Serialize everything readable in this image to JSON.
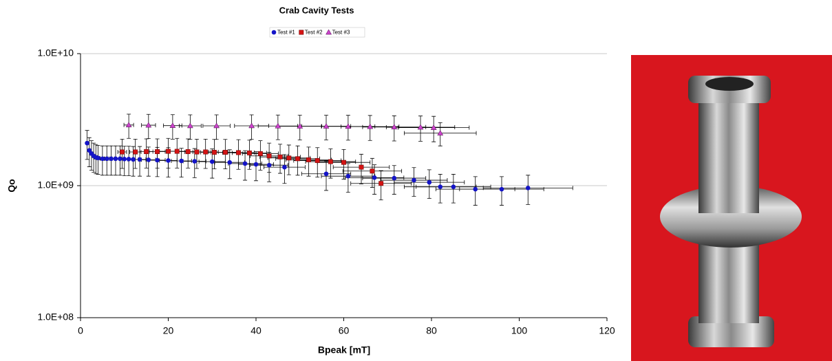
{
  "chart_data": {
    "type": "errorbar_scatter",
    "title": "Crab Cavity Tests",
    "x_label": "Bpeak [mT]",
    "y_label": "Qo",
    "xlim": [
      0,
      120
    ],
    "xticks": [
      0,
      20,
      40,
      60,
      80,
      100,
      120
    ],
    "ylim": [
      100000000.0,
      10000000000.0
    ],
    "log_y": true,
    "grid": true,
    "yticks": [
      {
        "value": 100000000.0,
        "label": "1.0E+08"
      },
      {
        "value": 1000000000.0,
        "label": "1.0E+09"
      },
      {
        "value": 10000000000.0,
        "label": "1.0E+10"
      }
    ],
    "legend": "top",
    "series": [
      {
        "name": "Test #1",
        "color": "#1414c8",
        "marker": "circle",
        "x": [
          1.5,
          2,
          2.5,
          3,
          3.5,
          4,
          5,
          6,
          7,
          8,
          9,
          10,
          11,
          12,
          13.5,
          15.5,
          17.5,
          20,
          23,
          26,
          30,
          34,
          37.5,
          40,
          43,
          46.5,
          56,
          61,
          67,
          71.5,
          76,
          79.5,
          82,
          85,
          90,
          96,
          102
        ],
        "values": [
          2100000000.0,
          1850000000.0,
          1750000000.0,
          1680000000.0,
          1640000000.0,
          1620000000.0,
          1600000000.0,
          1600000000.0,
          1600000000.0,
          1600000000.0,
          1600000000.0,
          1590000000.0,
          1590000000.0,
          1580000000.0,
          1580000000.0,
          1570000000.0,
          1560000000.0,
          1550000000.0,
          1540000000.0,
          1530000000.0,
          1520000000.0,
          1500000000.0,
          1470000000.0,
          1450000000.0,
          1430000000.0,
          1380000000.0,
          1230000000.0,
          1180000000.0,
          1150000000.0,
          1140000000.0,
          1100000000.0,
          1060000000.0,
          980000000.0,
          980000000.0,
          940000000.0,
          940000000.0,
          960000000.0
        ],
        "y_err": [
          520000000.0,
          460000000.0,
          440000000.0,
          420000000.0,
          410000000.0,
          400000000.0,
          400000000.0,
          400000000.0,
          400000000.0,
          400000000.0,
          400000000.0,
          400000000.0,
          400000000.0,
          400000000.0,
          400000000.0,
          390000000.0,
          390000000.0,
          390000000.0,
          380000000.0,
          380000000.0,
          380000000.0,
          370000000.0,
          370000000.0,
          360000000.0,
          360000000.0,
          340000000.0,
          310000000.0,
          290000000.0,
          290000000.0,
          280000000.0,
          270000000.0,
          260000000.0,
          240000000.0,
          240000000.0,
          230000000.0,
          230000000.0,
          240000000.0
        ],
        "x_err": [
          0.2,
          0.2,
          0.3,
          0.3,
          0.4,
          0.4,
          0.5,
          0.6,
          0.7,
          0.8,
          0.9,
          1,
          1.1,
          1.2,
          1.4,
          1.6,
          1.8,
          2,
          2.3,
          2.6,
          3,
          3.4,
          3.8,
          4,
          4.3,
          4.7,
          5.6,
          6.1,
          6.7,
          7.2,
          7.6,
          8,
          8.2,
          8.5,
          9,
          9.6,
          10.2
        ]
      },
      {
        "name": "Test #2",
        "color": "#d41414",
        "marker": "square",
        "x": [
          9.5,
          12.5,
          15,
          17.5,
          20,
          22,
          24.5,
          26.5,
          28.5,
          30.5,
          33,
          36,
          38.5,
          41,
          43,
          45.5,
          47.5,
          49.5,
          52,
          54,
          57,
          60,
          64,
          66.5,
          68.5
        ],
        "values": [
          1800000000.0,
          1800000000.0,
          1810000000.0,
          1810000000.0,
          1820000000.0,
          1820000000.0,
          1810000000.0,
          1800000000.0,
          1800000000.0,
          1790000000.0,
          1790000000.0,
          1780000000.0,
          1770000000.0,
          1750000000.0,
          1680000000.0,
          1650000000.0,
          1620000000.0,
          1600000000.0,
          1570000000.0,
          1550000000.0,
          1520000000.0,
          1500000000.0,
          1380000000.0,
          1290000000.0,
          1040000000.0
        ],
        "y_err": [
          450000000.0,
          450000000.0,
          450000000.0,
          450000000.0,
          460000000.0,
          460000000.0,
          450000000.0,
          450000000.0,
          450000000.0,
          450000000.0,
          450000000.0,
          450000000.0,
          440000000.0,
          440000000.0,
          420000000.0,
          410000000.0,
          410000000.0,
          400000000.0,
          390000000.0,
          390000000.0,
          380000000.0,
          380000000.0,
          350000000.0,
          320000000.0,
          260000000.0
        ],
        "x_err": [
          1,
          1.3,
          1.5,
          1.8,
          2,
          2.2,
          2.5,
          2.7,
          2.9,
          3.1,
          3.3,
          3.6,
          3.9,
          4.1,
          4.3,
          4.6,
          4.8,
          5,
          5.2,
          5.4,
          5.7,
          6,
          6.4,
          6.7,
          6.9
        ]
      },
      {
        "name": "Test #3",
        "color": "#cc44cc",
        "marker": "triangle",
        "x": [
          11,
          15.5,
          21,
          25,
          31,
          39,
          45,
          50,
          56,
          61,
          66,
          71.5,
          77.5,
          80.5,
          82
        ],
        "values": [
          2880000000.0,
          2870000000.0,
          2850000000.0,
          2840000000.0,
          2840000000.0,
          2840000000.0,
          2830000000.0,
          2820000000.0,
          2820000000.0,
          2810000000.0,
          2800000000.0,
          2780000000.0,
          2770000000.0,
          2750000000.0,
          2500000000.0
        ],
        "y_err": [
          600000000.0,
          600000000.0,
          600000000.0,
          600000000.0,
          600000000.0,
          600000000.0,
          600000000.0,
          600000000.0,
          600000000.0,
          600000000.0,
          600000000.0,
          600000000.0,
          600000000.0,
          600000000.0,
          500000000.0
        ],
        "x_err": [
          1.1,
          1.6,
          2.1,
          2.5,
          3.1,
          3.9,
          4.5,
          5,
          5.6,
          6.1,
          6.6,
          7.2,
          7.8,
          8.1,
          8.2
        ]
      }
    ]
  }
}
